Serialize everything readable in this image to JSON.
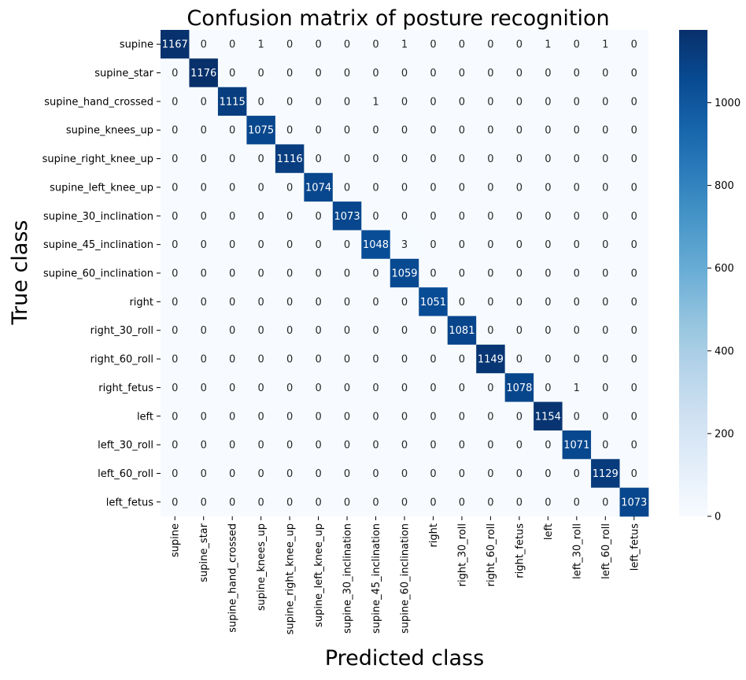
{
  "chart_data": {
    "type": "heatmap",
    "title": "Confusion matrix of posture recognition",
    "xlabel": "Predicted class",
    "ylabel": "True class",
    "x_categories": [
      "supine",
      "supine_star",
      "supine_hand_crossed",
      "supine_knees_up",
      "supine_right_knee_up",
      "supine_left_knee_up",
      "supine_30_inclination",
      "supine_45_inclination",
      "supine_60_inclination",
      "right",
      "right_30_roll",
      "right_60_roll",
      "right_fetus",
      "left",
      "left_30_roll",
      "left_60_roll",
      "left_fetus"
    ],
    "y_categories": [
      "supine",
      "supine_star",
      "supine_hand_crossed",
      "supine_knees_up",
      "supine_right_knee_up",
      "supine_left_knee_up",
      "supine_30_inclination",
      "supine_45_inclination",
      "supine_60_inclination",
      "right",
      "right_30_roll",
      "right_60_roll",
      "right_fetus",
      "left",
      "left_30_roll",
      "left_60_roll",
      "left_fetus"
    ],
    "values": [
      [
        1167,
        0,
        0,
        1,
        0,
        0,
        0,
        0,
        1,
        0,
        0,
        0,
        0,
        1,
        0,
        1,
        0
      ],
      [
        0,
        1176,
        0,
        0,
        0,
        0,
        0,
        0,
        0,
        0,
        0,
        0,
        0,
        0,
        0,
        0,
        0
      ],
      [
        0,
        0,
        1115,
        0,
        0,
        0,
        0,
        1,
        0,
        0,
        0,
        0,
        0,
        0,
        0,
        0,
        0
      ],
      [
        0,
        0,
        0,
        1075,
        0,
        0,
        0,
        0,
        0,
        0,
        0,
        0,
        0,
        0,
        0,
        0,
        0
      ],
      [
        0,
        0,
        0,
        0,
        1116,
        0,
        0,
        0,
        0,
        0,
        0,
        0,
        0,
        0,
        0,
        0,
        0
      ],
      [
        0,
        0,
        0,
        0,
        0,
        1074,
        0,
        0,
        0,
        0,
        0,
        0,
        0,
        0,
        0,
        0,
        0
      ],
      [
        0,
        0,
        0,
        0,
        0,
        0,
        1073,
        0,
        0,
        0,
        0,
        0,
        0,
        0,
        0,
        0,
        0
      ],
      [
        0,
        0,
        0,
        0,
        0,
        0,
        0,
        1048,
        3,
        0,
        0,
        0,
        0,
        0,
        0,
        0,
        0
      ],
      [
        0,
        0,
        0,
        0,
        0,
        0,
        0,
        0,
        1059,
        0,
        0,
        0,
        0,
        0,
        0,
        0,
        0
      ],
      [
        0,
        0,
        0,
        0,
        0,
        0,
        0,
        0,
        0,
        1051,
        0,
        0,
        0,
        0,
        0,
        0,
        0
      ],
      [
        0,
        0,
        0,
        0,
        0,
        0,
        0,
        0,
        0,
        0,
        1081,
        0,
        0,
        0,
        0,
        0,
        0
      ],
      [
        0,
        0,
        0,
        0,
        0,
        0,
        0,
        0,
        0,
        0,
        0,
        1149,
        0,
        0,
        0,
        0,
        0
      ],
      [
        0,
        0,
        0,
        0,
        0,
        0,
        0,
        0,
        0,
        0,
        0,
        0,
        1078,
        0,
        1,
        0,
        0
      ],
      [
        0,
        0,
        0,
        0,
        0,
        0,
        0,
        0,
        0,
        0,
        0,
        0,
        0,
        1154,
        0,
        0,
        0
      ],
      [
        0,
        0,
        0,
        0,
        0,
        0,
        0,
        0,
        0,
        0,
        0,
        0,
        0,
        0,
        1071,
        0,
        0
      ],
      [
        0,
        0,
        0,
        0,
        0,
        0,
        0,
        0,
        0,
        0,
        0,
        0,
        0,
        0,
        0,
        1129,
        0
      ],
      [
        0,
        0,
        0,
        0,
        0,
        0,
        0,
        0,
        0,
        0,
        0,
        0,
        0,
        0,
        0,
        0,
        1073
      ]
    ],
    "colormap": "Blues",
    "colorbar": {
      "range": [
        0,
        1176
      ],
      "ticks": [
        0,
        200,
        400,
        600,
        800,
        1000
      ]
    },
    "grid": false,
    "legend": "colorbar-right"
  }
}
